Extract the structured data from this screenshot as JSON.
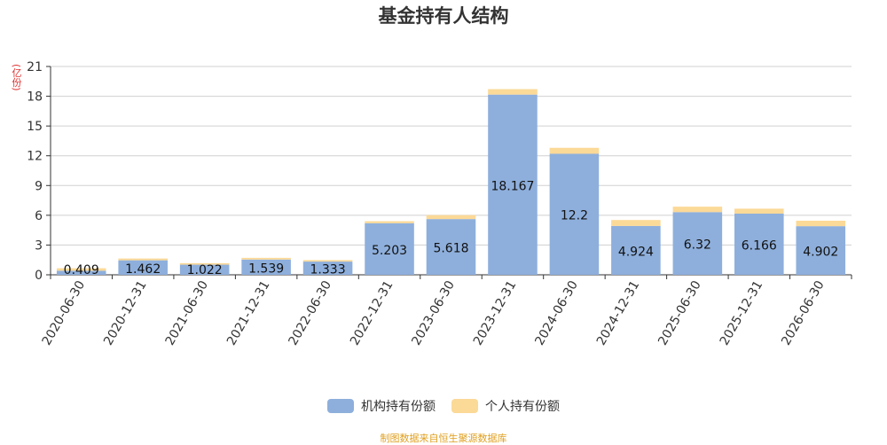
{
  "chart_data": {
    "type": "bar",
    "stacked": true,
    "title": "基金持有人结构",
    "unit": "(亿份)",
    "ylim": [
      0,
      21
    ],
    "yticks": [
      0,
      3,
      6,
      9,
      12,
      15,
      18,
      21
    ],
    "categories": [
      "2020-06-30",
      "2020-12-31",
      "2021-06-30",
      "2021-12-31",
      "2022-06-30",
      "2022-12-31",
      "2023-06-30",
      "2023-12-31",
      "2024-06-30",
      "2024-12-31",
      "2025-06-30",
      "2025-12-31",
      "2026-06-30"
    ],
    "series": [
      {
        "name": "机构持有份额",
        "color": "#8eafdc",
        "values": [
          0.409,
          1.462,
          1.022,
          1.539,
          1.333,
          5.203,
          5.618,
          18.167,
          12.2,
          4.924,
          6.32,
          6.166,
          4.902
        ]
      },
      {
        "name": "个人持有份额",
        "color": "#fbd997",
        "values": [
          0.25,
          0.18,
          0.15,
          0.17,
          0.15,
          0.2,
          0.4,
          0.55,
          0.6,
          0.6,
          0.55,
          0.5,
          0.55
        ]
      }
    ],
    "legend_position": "bottom",
    "grid": true
  },
  "footer": {
    "source": "制图数据来自恒生聚源数据库"
  }
}
